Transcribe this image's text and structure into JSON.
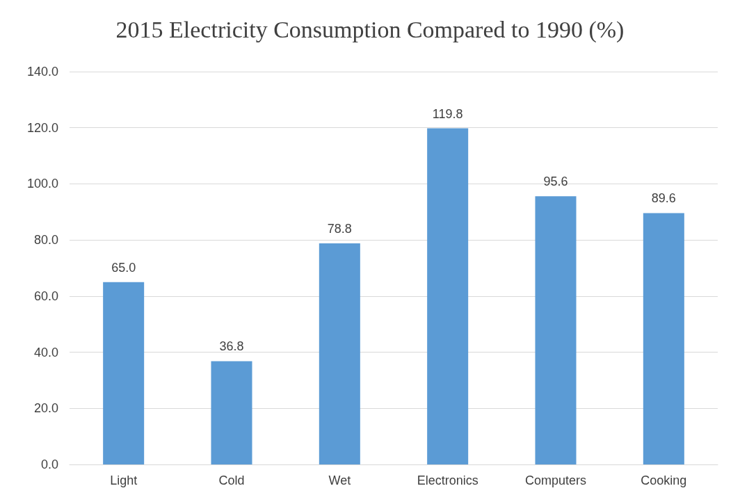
{
  "chart_data": {
    "type": "bar",
    "title": "2015 Electricity Consumption Compared to 1990 (%)",
    "categories": [
      "Light",
      "Cold",
      "Wet",
      "Electronics",
      "Computers",
      "Cooking"
    ],
    "values": [
      65.0,
      36.8,
      78.8,
      119.8,
      95.6,
      89.6
    ],
    "value_labels": [
      "65.0",
      "36.8",
      "78.8",
      "119.8",
      "95.6",
      "89.6"
    ],
    "color": "#5b9bd5",
    "ylim": [
      0,
      140
    ],
    "yticks": [
      {
        "value": 0,
        "label": "0.0"
      },
      {
        "value": 20,
        "label": "20.0"
      },
      {
        "value": 40,
        "label": "40.0"
      },
      {
        "value": 60,
        "label": "60.0"
      },
      {
        "value": 80,
        "label": "80.0"
      },
      {
        "value": 100,
        "label": "100.0"
      },
      {
        "value": 120,
        "label": "120.0"
      },
      {
        "value": 140,
        "label": "140.0"
      }
    ],
    "grid": "y"
  }
}
